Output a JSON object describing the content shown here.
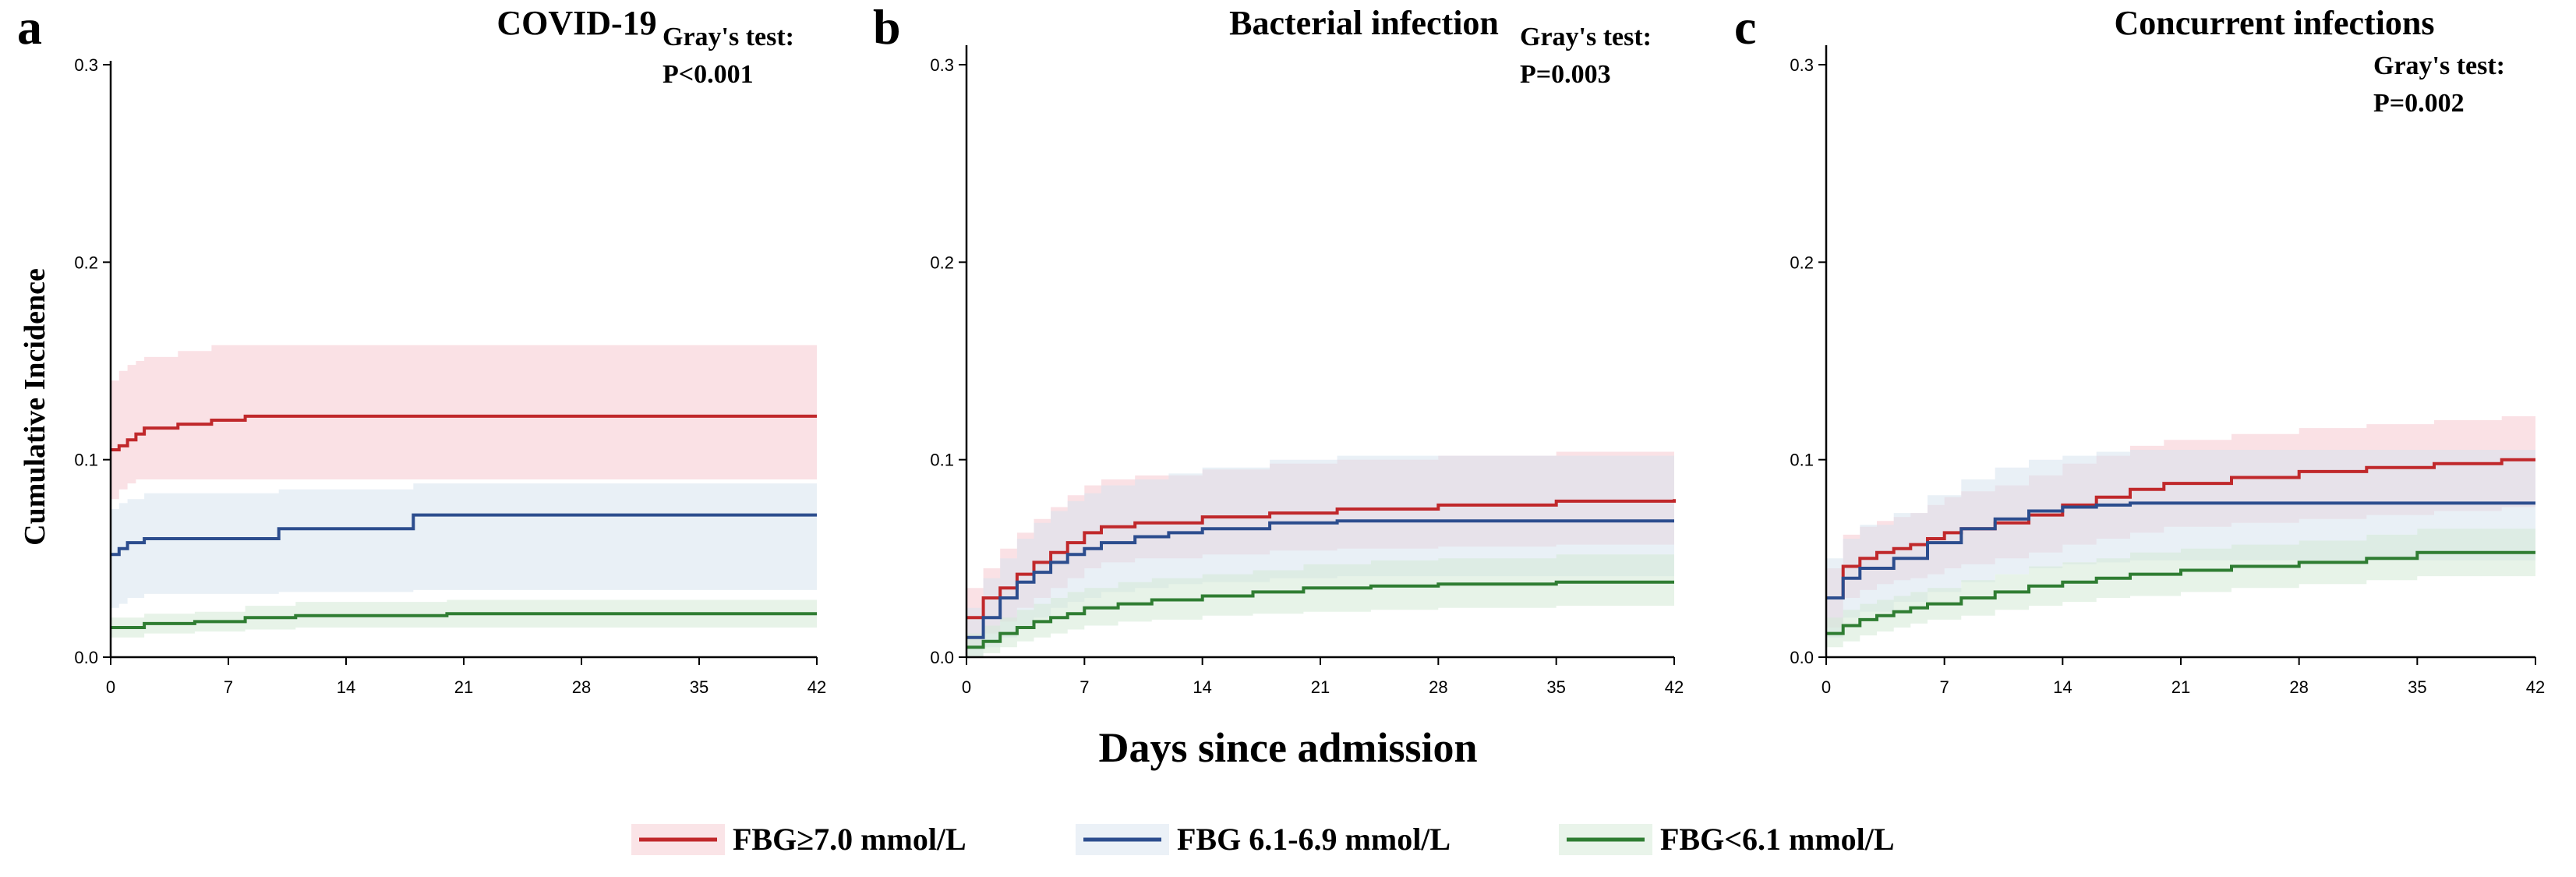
{
  "xlabel": "Days since admission",
  "ylabel": "Cumulative Incidence",
  "legend": [
    {
      "label": "FBG≥7.0 mmol/L",
      "color": "#c0282b"
    },
    {
      "label": "FBG 6.1-6.9 mmol/L",
      "color": "#2c4d8e"
    },
    {
      "label": "FBG<6.1 mmol/L",
      "color": "#2f7d32"
    }
  ],
  "colors": {
    "red_band": "#f6c9d0",
    "blue_band": "#d7e4ef",
    "green_band": "#d3ead6"
  },
  "chart_data": [
    {
      "type": "line",
      "letter": "a",
      "title": "COVID-19",
      "gray_label": "Gray's test:",
      "gray_p": "P<0.001",
      "xlim": [
        0,
        42
      ],
      "ylim": [
        0,
        0.3
      ],
      "xticks": [
        "0",
        "7",
        "14",
        "21",
        "28",
        "35",
        "42"
      ],
      "yticks": [
        "0.0",
        "0.1",
        "0.2",
        "0.3"
      ],
      "series": [
        {
          "name": "FBG≥7.0 mmol/L",
          "x": [
            0,
            0.5,
            1,
            1.5,
            2,
            4,
            6,
            8,
            42
          ],
          "y": [
            0.105,
            0.107,
            0.11,
            0.113,
            0.116,
            0.118,
            0.12,
            0.122,
            0.122
          ],
          "lower": [
            0.08,
            0.085,
            0.088,
            0.09,
            0.09,
            0.09,
            0.09,
            0.09,
            0.09
          ],
          "upper": [
            0.14,
            0.145,
            0.148,
            0.15,
            0.152,
            0.155,
            0.158,
            0.158,
            0.158
          ]
        },
        {
          "name": "FBG 6.1-6.9 mmol/L",
          "x": [
            0,
            0.5,
            1,
            2,
            10,
            18,
            42
          ],
          "y": [
            0.052,
            0.055,
            0.058,
            0.06,
            0.065,
            0.072,
            0.072
          ],
          "lower": [
            0.025,
            0.027,
            0.03,
            0.032,
            0.033,
            0.034,
            0.034
          ],
          "upper": [
            0.075,
            0.078,
            0.08,
            0.083,
            0.085,
            0.088,
            0.088
          ]
        },
        {
          "name": "FBG<6.1 mmol/L",
          "x": [
            0,
            2,
            5,
            8,
            11,
            20,
            42
          ],
          "y": [
            0.015,
            0.017,
            0.018,
            0.02,
            0.021,
            0.022,
            0.022
          ],
          "lower": [
            0.01,
            0.012,
            0.013,
            0.014,
            0.015,
            0.015,
            0.015
          ],
          "upper": [
            0.02,
            0.022,
            0.023,
            0.026,
            0.028,
            0.029,
            0.029
          ]
        }
      ]
    },
    {
      "type": "line",
      "letter": "b",
      "title": "Bacterial infection",
      "gray_label": "Gray's test:",
      "gray_p": "P=0.003",
      "xlim": [
        0,
        42
      ],
      "ylim": [
        0,
        0.3
      ],
      "xticks": [
        "0",
        "7",
        "14",
        "21",
        "28",
        "35",
        "42"
      ],
      "yticks": [
        "0.0",
        "0.1",
        "0.2",
        "0.3"
      ],
      "series": [
        {
          "name": "FBG≥7.0 mmol/L",
          "x": [
            0,
            1,
            2,
            3,
            4,
            5,
            6,
            7,
            8,
            10,
            14,
            18,
            22,
            28,
            35,
            42
          ],
          "y": [
            0.02,
            0.03,
            0.035,
            0.042,
            0.048,
            0.053,
            0.058,
            0.063,
            0.066,
            0.068,
            0.071,
            0.073,
            0.075,
            0.077,
            0.079,
            0.08
          ],
          "lower": [
            0.005,
            0.012,
            0.018,
            0.025,
            0.03,
            0.035,
            0.04,
            0.045,
            0.048,
            0.05,
            0.052,
            0.054,
            0.055,
            0.056,
            0.057,
            0.058
          ],
          "upper": [
            0.035,
            0.045,
            0.055,
            0.063,
            0.07,
            0.076,
            0.082,
            0.087,
            0.09,
            0.092,
            0.095,
            0.098,
            0.1,
            0.102,
            0.104,
            0.105
          ]
        },
        {
          "name": "FBG 6.1-6.9 mmol/L",
          "x": [
            0,
            1,
            2,
            3,
            4,
            5,
            6,
            7,
            8,
            10,
            12,
            14,
            18,
            22,
            28,
            35,
            42
          ],
          "y": [
            0.01,
            0.02,
            0.03,
            0.038,
            0.043,
            0.048,
            0.052,
            0.055,
            0.058,
            0.061,
            0.063,
            0.065,
            0.068,
            0.069,
            0.069,
            0.069,
            0.069
          ],
          "lower": [
            0,
            0.005,
            0.01,
            0.015,
            0.02,
            0.025,
            0.028,
            0.03,
            0.033,
            0.035,
            0.037,
            0.038,
            0.04,
            0.041,
            0.041,
            0.041,
            0.041
          ],
          "upper": [
            0.025,
            0.04,
            0.05,
            0.06,
            0.068,
            0.074,
            0.079,
            0.083,
            0.087,
            0.09,
            0.093,
            0.096,
            0.1,
            0.102,
            0.102,
            0.102,
            0.102
          ]
        },
        {
          "name": "FBG<6.1 mmol/L",
          "x": [
            0,
            1,
            2,
            3,
            4,
            5,
            6,
            7,
            9,
            11,
            14,
            17,
            20,
            24,
            28,
            35,
            42
          ],
          "y": [
            0.005,
            0.008,
            0.012,
            0.015,
            0.018,
            0.02,
            0.022,
            0.025,
            0.027,
            0.029,
            0.031,
            0.033,
            0.035,
            0.036,
            0.037,
            0.038,
            0.038
          ],
          "lower": [
            0,
            0.002,
            0.005,
            0.008,
            0.01,
            0.012,
            0.014,
            0.016,
            0.018,
            0.019,
            0.021,
            0.022,
            0.023,
            0.024,
            0.025,
            0.026,
            0.026
          ],
          "upper": [
            0.012,
            0.016,
            0.02,
            0.024,
            0.027,
            0.03,
            0.033,
            0.035,
            0.038,
            0.04,
            0.042,
            0.044,
            0.047,
            0.049,
            0.05,
            0.052,
            0.052
          ]
        }
      ]
    },
    {
      "type": "line",
      "letter": "c",
      "title": "Concurrent infections",
      "gray_label": "Gray's test:",
      "gray_p": "P=0.002",
      "xlim": [
        0,
        42
      ],
      "ylim": [
        0,
        0.3
      ],
      "xticks": [
        "0",
        "7",
        "14",
        "21",
        "28",
        "35",
        "42"
      ],
      "yticks": [
        "0.0",
        "0.1",
        "0.2",
        "0.3"
      ],
      "series": [
        {
          "name": "FBG≥7.0 mmol/L",
          "x": [
            0,
            1,
            2,
            3,
            4,
            5,
            6,
            7,
            8,
            10,
            12,
            14,
            16,
            18,
            20,
            24,
            28,
            32,
            36,
            40,
            42
          ],
          "y": [
            0.03,
            0.046,
            0.05,
            0.053,
            0.055,
            0.057,
            0.06,
            0.063,
            0.065,
            0.068,
            0.072,
            0.077,
            0.081,
            0.085,
            0.088,
            0.091,
            0.094,
            0.096,
            0.098,
            0.1,
            0.1
          ],
          "lower": [
            0.015,
            0.03,
            0.034,
            0.037,
            0.039,
            0.04,
            0.042,
            0.045,
            0.047,
            0.05,
            0.053,
            0.057,
            0.06,
            0.063,
            0.066,
            0.068,
            0.07,
            0.072,
            0.074,
            0.076,
            0.076
          ],
          "upper": [
            0.045,
            0.062,
            0.066,
            0.069,
            0.071,
            0.073,
            0.077,
            0.081,
            0.084,
            0.087,
            0.092,
            0.098,
            0.102,
            0.107,
            0.11,
            0.113,
            0.116,
            0.118,
            0.12,
            0.122,
            0.122
          ]
        },
        {
          "name": "FBG 6.1-6.9 mmol/L",
          "x": [
            0,
            1,
            2,
            4,
            6,
            8,
            10,
            12,
            14,
            16,
            18,
            42
          ],
          "y": [
            0.03,
            0.04,
            0.045,
            0.05,
            0.058,
            0.065,
            0.07,
            0.074,
            0.076,
            0.077,
            0.078,
            0.078
          ],
          "lower": [
            0.01,
            0.02,
            0.023,
            0.028,
            0.033,
            0.038,
            0.042,
            0.045,
            0.047,
            0.048,
            0.049,
            0.049
          ],
          "upper": [
            0.05,
            0.06,
            0.067,
            0.073,
            0.082,
            0.09,
            0.096,
            0.1,
            0.102,
            0.104,
            0.105,
            0.105
          ]
        },
        {
          "name": "FBG<6.1 mmol/L",
          "x": [
            0,
            1,
            2,
            3,
            4,
            5,
            6,
            8,
            10,
            12,
            14,
            16,
            18,
            21,
            24,
            28,
            32,
            35,
            42
          ],
          "y": [
            0.012,
            0.016,
            0.019,
            0.021,
            0.023,
            0.025,
            0.027,
            0.03,
            0.033,
            0.036,
            0.038,
            0.04,
            0.042,
            0.044,
            0.046,
            0.048,
            0.05,
            0.053,
            0.053
          ],
          "lower": [
            0.005,
            0.008,
            0.011,
            0.013,
            0.015,
            0.017,
            0.019,
            0.021,
            0.024,
            0.026,
            0.028,
            0.03,
            0.031,
            0.033,
            0.035,
            0.037,
            0.039,
            0.041,
            0.041
          ],
          "upper": [
            0.02,
            0.024,
            0.027,
            0.029,
            0.031,
            0.033,
            0.035,
            0.039,
            0.042,
            0.046,
            0.048,
            0.05,
            0.053,
            0.055,
            0.057,
            0.059,
            0.062,
            0.065,
            0.065
          ]
        }
      ]
    }
  ]
}
